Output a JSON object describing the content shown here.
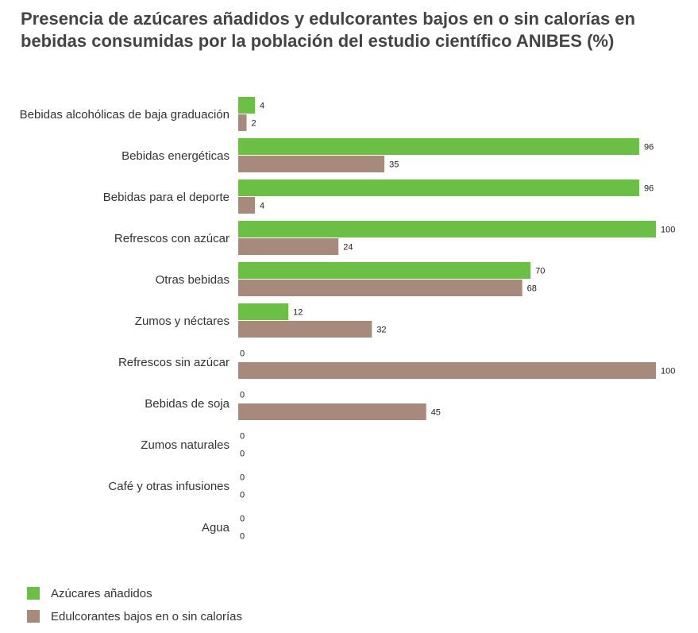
{
  "title": {
    "line1": "Presencia de azúcares añadidos y edulcorantes bajos en o sin calorías en",
    "line2_bold": "bebidas",
    "line2_rest": " consumidas por la población del estudio científico ANIBES (%)"
  },
  "colors": {
    "azucares": "#6cbf45",
    "edulcorantes": "#a88a7c"
  },
  "chart_data": {
    "type": "bar",
    "orientation": "horizontal",
    "title": "Presencia de azúcares añadidos y edulcorantes bajos en o sin calorías en bebidas consumidas por la población del estudio científico ANIBES (%)",
    "categories": [
      "Bebidas alcohólicas de baja graduación",
      "Bebidas energéticas",
      "Bebidas para el deporte",
      "Refrescos con azúcar",
      "Otras bebidas",
      "Zumos y néctares",
      "Refrescos sin azúcar",
      "Bebidas de soja",
      "Zumos naturales",
      "Café y otras infusiones",
      "Agua"
    ],
    "series": [
      {
        "name": "Azúcares añadidos",
        "values": [
          4,
          96,
          96,
          100,
          70,
          12,
          0,
          0,
          0,
          0,
          0
        ]
      },
      {
        "name": "Edulcorantes bajos en o sin calorías",
        "values": [
          2,
          35,
          4,
          24,
          68,
          32,
          100,
          45,
          0,
          0,
          0
        ]
      }
    ],
    "xlim": [
      0,
      100
    ],
    "grid": false,
    "legend_position": "bottom-left"
  }
}
